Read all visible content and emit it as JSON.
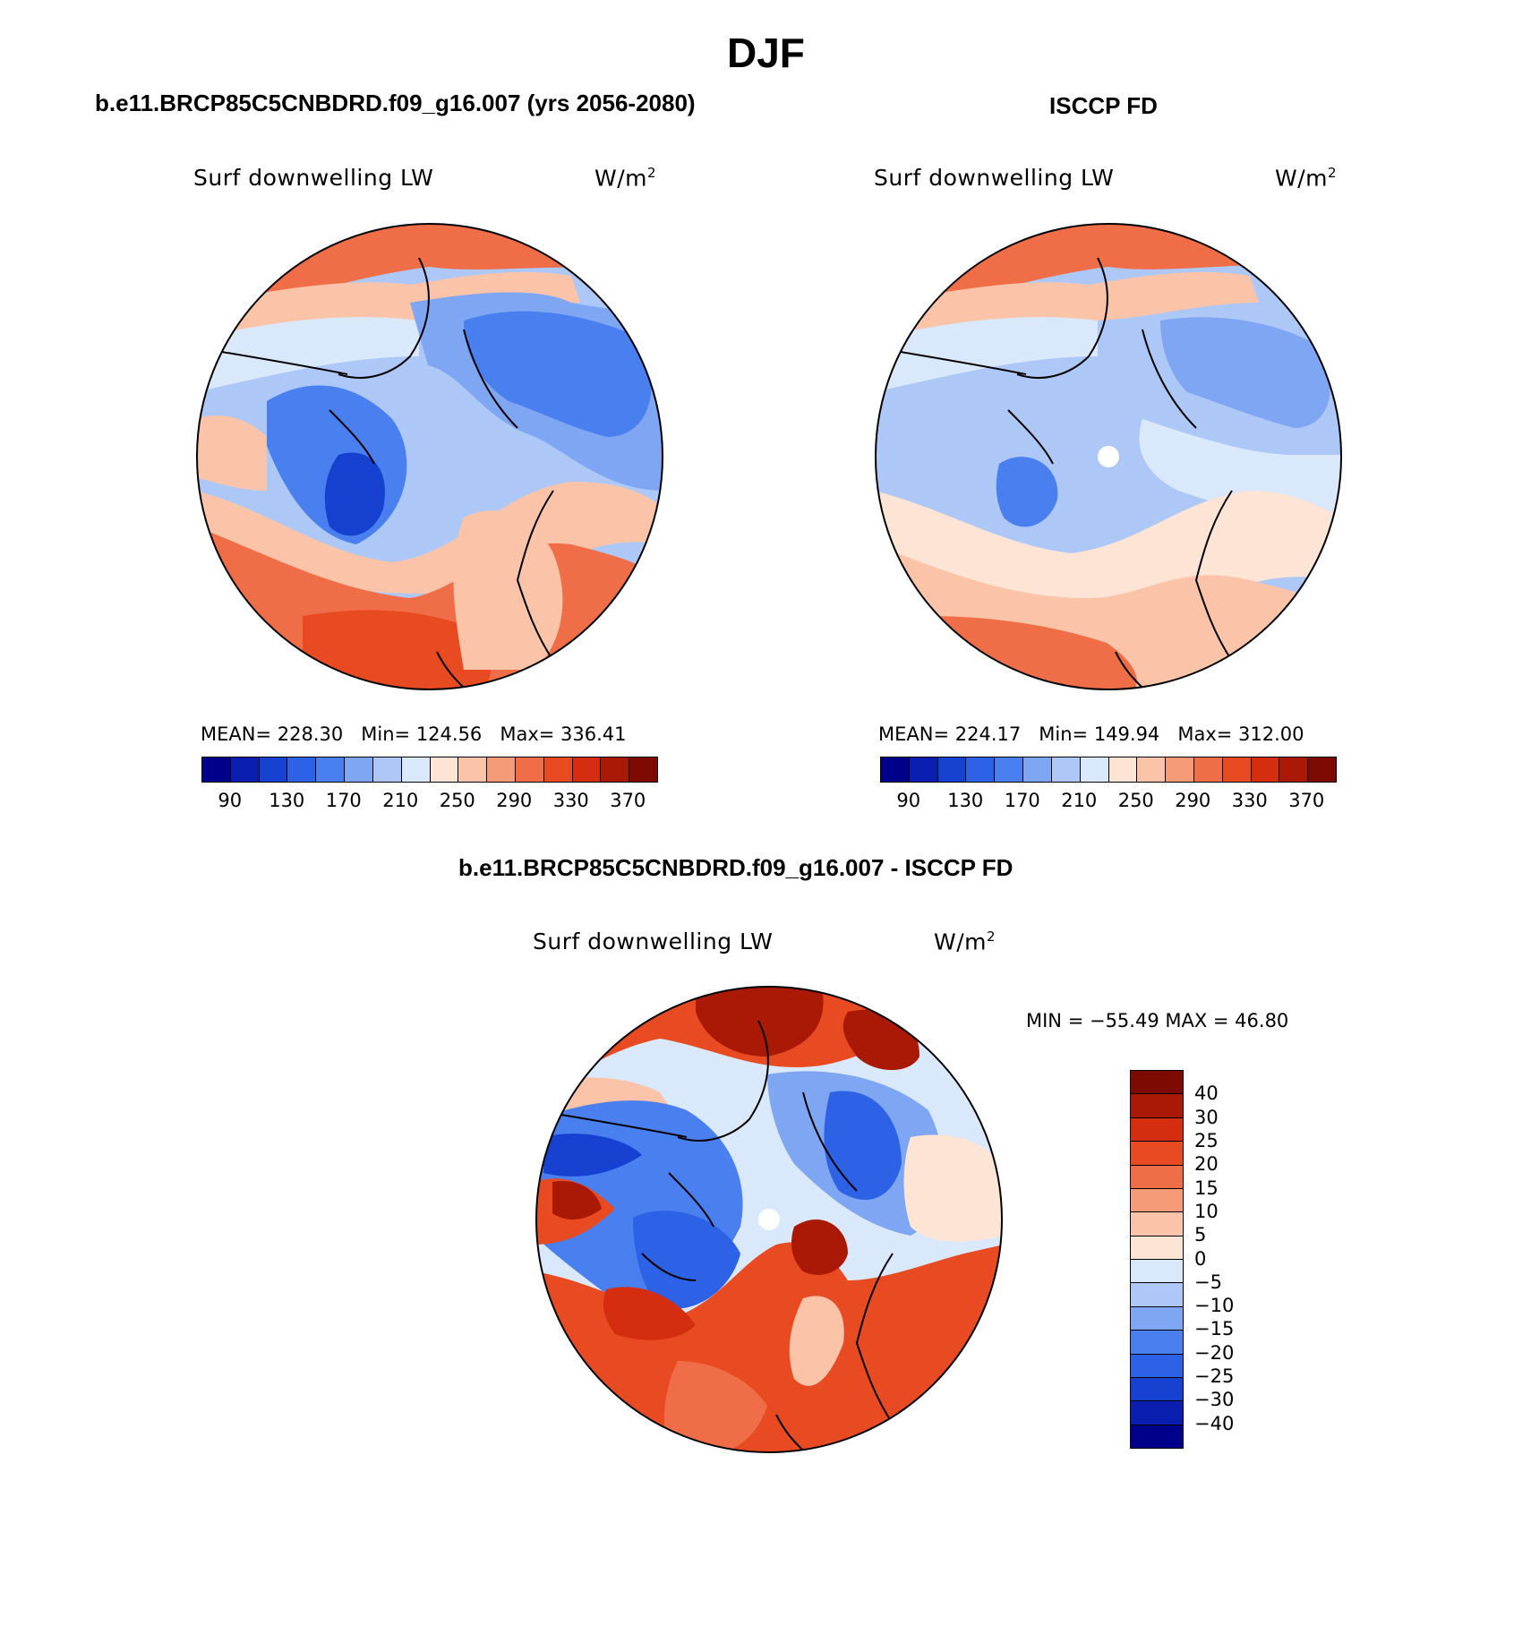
{
  "title": "DJF",
  "panels": {
    "model": {
      "header": "b.e11.BRCP85C5CNBDRD.f09_g16.007 (yrs 2056-2080)",
      "variable": "Surf downwelling LW",
      "units": "W/m",
      "units_exp": "2",
      "mean_label": "MEAN=",
      "mean": "228.30",
      "min_label": "Min=",
      "min": "124.56",
      "max_label": "Max=",
      "max": "336.41"
    },
    "obs": {
      "header": "ISCCP FD",
      "variable": "Surf downwelling LW",
      "units": "W/m",
      "units_exp": "2",
      "mean_label": "MEAN=",
      "mean": "224.17",
      "min_label": "Min=",
      "min": "149.94",
      "max_label": "Max=",
      "max": "312.00"
    },
    "diff": {
      "header": "b.e11.BRCP85C5CNBDRD.f09_g16.007 - ISCCP FD",
      "variable": "Surf downwelling LW",
      "units": "W/m",
      "units_exp": "2",
      "minmax": "MIN = −55.49 MAX =   46.80"
    }
  },
  "abs_colorbar": {
    "ticks": [
      "90",
      "130",
      "170",
      "210",
      "250",
      "290",
      "330",
      "370"
    ],
    "colors": [
      "#00008b",
      "#0a1fb0",
      "#1741d0",
      "#2d62e6",
      "#4a7ff0",
      "#7ea6f2",
      "#adc8f7",
      "#d9e8fb",
      "#fde4d4",
      "#fbc4a8",
      "#f69b77",
      "#f06e47",
      "#e84a22",
      "#d42d0f",
      "#aa1905",
      "#7d0b02"
    ]
  },
  "diff_colorbar": {
    "ticks": [
      "40",
      "30",
      "25",
      "20",
      "15",
      "10",
      "5",
      "0",
      "−5",
      "−10",
      "−15",
      "−20",
      "−25",
      "−30",
      "−40"
    ],
    "colors": [
      "#7d0b02",
      "#aa1905",
      "#d42d0f",
      "#e84a22",
      "#f06e47",
      "#f69b77",
      "#fbc4a8",
      "#fde4d4",
      "#d9e8fb",
      "#adc8f7",
      "#7ea6f2",
      "#4a7ff0",
      "#2d62e6",
      "#1741d0",
      "#0a1fb0",
      "#00008b"
    ]
  }
}
